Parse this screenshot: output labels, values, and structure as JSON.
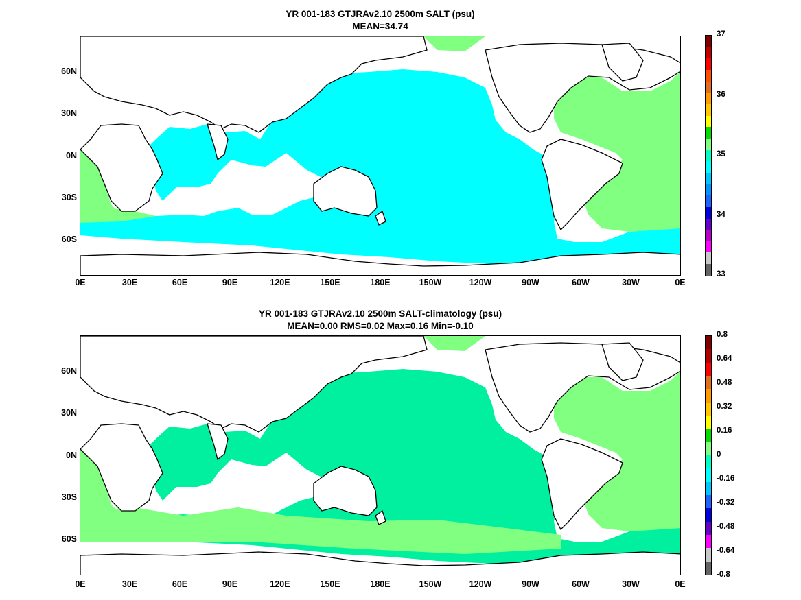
{
  "panels": [
    {
      "title_line1": "YR 001-183 GTJRAv2.10 2500m SALT (psu)",
      "title_line2": "MEAN=34.74",
      "colorbar": {
        "labels": [
          "37",
          "36",
          "35",
          "34",
          "33"
        ],
        "colors": [
          "#800000",
          "#c00000",
          "#ff0000",
          "#ff5000",
          "#e07020",
          "#ff9b00",
          "#ffc800",
          "#ffff00",
          "#00dd00",
          "#80ff80",
          "#00ffc0",
          "#00ffff",
          "#00c8ff",
          "#0096ff",
          "#1e64ff",
          "#0000e0",
          "#6400c8",
          "#b400c8",
          "#ff00ff",
          "#c8c8c8",
          "#646464"
        ]
      },
      "fill_colors": {
        "ocean": "#00ffff",
        "atlantic": "#80ff80",
        "southern_patch": "#80ff80"
      }
    },
    {
      "title_line1": "YR 001-183 GTJRAv2.10 2500m SALT-climatology (psu)",
      "title_line2": "MEAN=0.00   RMS=0.02   Max=0.16   Min=-0.10",
      "colorbar": {
        "labels": [
          "0.8",
          "0.64",
          "0.48",
          "0.32",
          "0.16",
          "0",
          "-0.16",
          "-0.32",
          "-0.48",
          "-0.64",
          "-0.8"
        ],
        "colors": [
          "#800000",
          "#b40000",
          "#ff0000",
          "#e07020",
          "#ff9b00",
          "#ffc800",
          "#ffff00",
          "#00dd00",
          "#80ff80",
          "#00ffc0",
          "#00ffff",
          "#00c8ff",
          "#1e64ff",
          "#0000e0",
          "#6400c8",
          "#ff00ff",
          "#c8c8c8",
          "#646464"
        ]
      },
      "fill_colors": {
        "ocean": "#00f0a0",
        "atlantic": "#80ff80",
        "southern_patch": "#80ff80"
      }
    }
  ],
  "axes": {
    "y_ticks": [
      "60N",
      "30N",
      "0N",
      "30S",
      "60S"
    ],
    "x_ticks": [
      "0E",
      "30E",
      "60E",
      "90E",
      "120E",
      "150E",
      "180E",
      "150W",
      "120W",
      "90W",
      "60W",
      "30W",
      "0E"
    ]
  }
}
